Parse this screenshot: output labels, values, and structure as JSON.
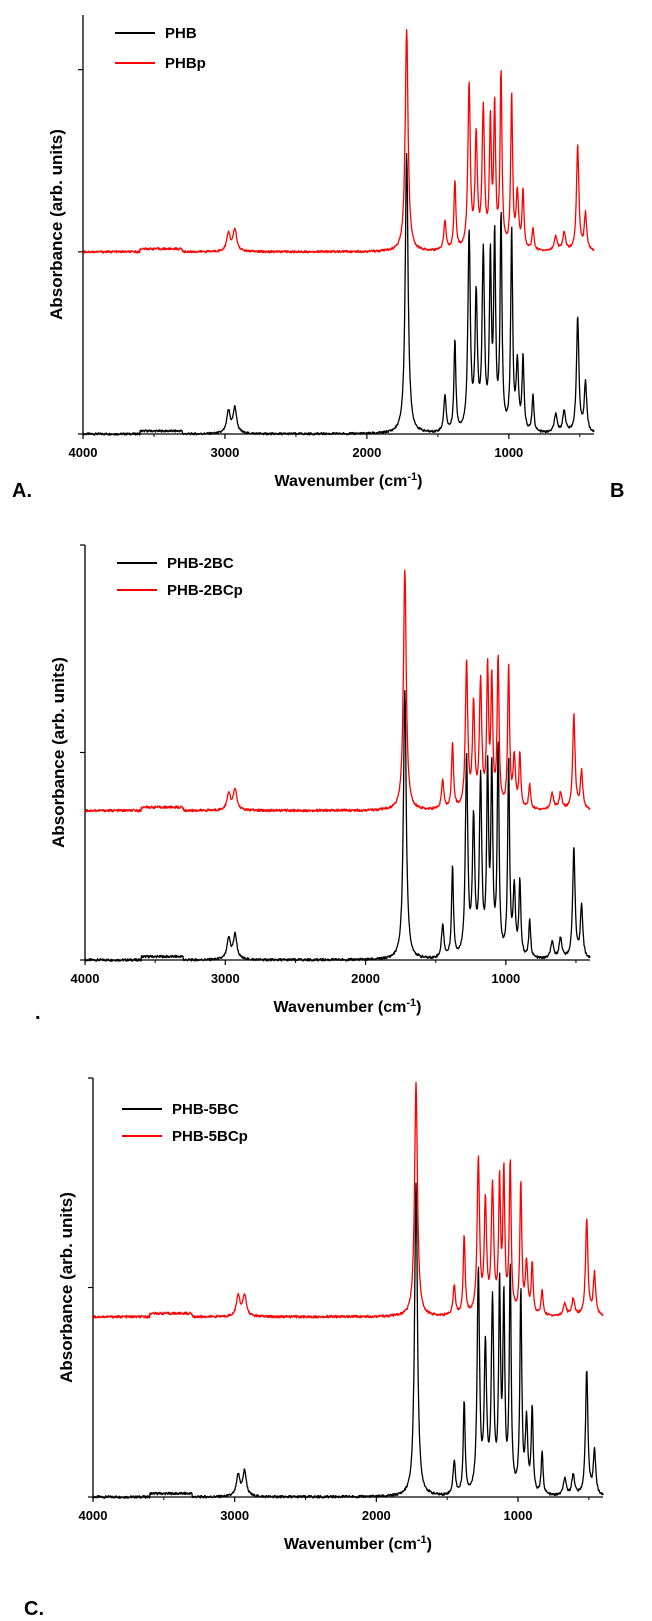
{
  "figure": {
    "panel_labels": {
      "a": "A.",
      "b": "B",
      "c": ".",
      "d": "C."
    }
  },
  "colors": {
    "series1": "#000000",
    "series2": "#ff0000",
    "axis": "#000000"
  },
  "chart_data": [
    {
      "type": "line",
      "xlabel": "Wavenumber (cm",
      "xlabel_sup": "-1",
      "xlabel_close": ")",
      "ylabel": "Absorbance (arb. units)",
      "xlim": [
        4000,
        400
      ],
      "x_reversed": true,
      "xticks": [
        4000,
        3000,
        2000,
        1000
      ],
      "ylim": [
        0,
        1.15
      ],
      "yticks": [
        0,
        0.5,
        1.0
      ],
      "show_ytick_labels": false,
      "grid": false,
      "legend_position": "top-left",
      "series": [
        {
          "name": "PHB",
          "color": "#000000",
          "offset": 0,
          "peaks": [
            [
              2975,
              0.06,
              15
            ],
            [
              2930,
              0.07,
              15
            ],
            [
              1720,
              0.77,
              12
            ],
            [
              1450,
              0.1,
              10
            ],
            [
              1380,
              0.25,
              8
            ],
            [
              1280,
              0.54,
              10
            ],
            [
              1230,
              0.36,
              10
            ],
            [
              1180,
              0.48,
              10
            ],
            [
              1130,
              0.46,
              8
            ],
            [
              1100,
              0.52,
              8
            ],
            [
              1055,
              0.58,
              8
            ],
            [
              980,
              0.55,
              8
            ],
            [
              940,
              0.18,
              10
            ],
            [
              900,
              0.2,
              8
            ],
            [
              830,
              0.1,
              8
            ],
            [
              670,
              0.05,
              12
            ],
            [
              610,
              0.06,
              12
            ],
            [
              515,
              0.32,
              10
            ],
            [
              460,
              0.14,
              10
            ]
          ]
        },
        {
          "name": "PHBp",
          "color": "#ff0000",
          "offset": 0.5,
          "peaks": [
            [
              2975,
              0.05,
              15
            ],
            [
              2930,
              0.06,
              15
            ],
            [
              1720,
              0.61,
              12
            ],
            [
              1450,
              0.08,
              10
            ],
            [
              1380,
              0.19,
              8
            ],
            [
              1280,
              0.45,
              10
            ],
            [
              1230,
              0.3,
              10
            ],
            [
              1180,
              0.38,
              10
            ],
            [
              1130,
              0.34,
              8
            ],
            [
              1100,
              0.38,
              8
            ],
            [
              1055,
              0.48,
              8
            ],
            [
              980,
              0.42,
              8
            ],
            [
              940,
              0.15,
              10
            ],
            [
              900,
              0.16,
              8
            ],
            [
              830,
              0.06,
              8
            ],
            [
              670,
              0.04,
              12
            ],
            [
              610,
              0.05,
              12
            ],
            [
              515,
              0.29,
              10
            ],
            [
              460,
              0.1,
              10
            ]
          ]
        }
      ]
    },
    {
      "type": "line",
      "xlabel": "Wavenumber (cm",
      "xlabel_sup": "-1",
      "xlabel_close": ")",
      "ylabel": "Absorbance (arb. units)",
      "xlim": [
        4000,
        400
      ],
      "x_reversed": true,
      "xticks": [
        4000,
        3000,
        2000,
        1000
      ],
      "ylim": [
        0,
        1.0
      ],
      "yticks": [
        0,
        0.5,
        1.0
      ],
      "show_ytick_labels": false,
      "grid": false,
      "legend_position": "top-left",
      "series": [
        {
          "name": "PHB-2BC",
          "color": "#000000",
          "offset": 0,
          "peaks": [
            [
              2975,
              0.05,
              15
            ],
            [
              2930,
              0.06,
              15
            ],
            [
              1720,
              0.65,
              12
            ],
            [
              1450,
              0.08,
              10
            ],
            [
              1380,
              0.22,
              8
            ],
            [
              1280,
              0.48,
              10
            ],
            [
              1230,
              0.32,
              10
            ],
            [
              1180,
              0.42,
              10
            ],
            [
              1130,
              0.44,
              8
            ],
            [
              1100,
              0.44,
              8
            ],
            [
              1055,
              0.5,
              8
            ],
            [
              980,
              0.47,
              8
            ],
            [
              940,
              0.16,
              10
            ],
            [
              900,
              0.18,
              8
            ],
            [
              830,
              0.09,
              8
            ],
            [
              670,
              0.04,
              12
            ],
            [
              610,
              0.05,
              12
            ],
            [
              515,
              0.27,
              10
            ],
            [
              460,
              0.13,
              10
            ]
          ]
        },
        {
          "name": "PHB-2BCp",
          "color": "#ff0000",
          "offset": 0.36,
          "peaks": [
            [
              2975,
              0.04,
              15
            ],
            [
              2930,
              0.05,
              15
            ],
            [
              1720,
              0.58,
              12
            ],
            [
              1450,
              0.07,
              10
            ],
            [
              1380,
              0.16,
              8
            ],
            [
              1280,
              0.35,
              10
            ],
            [
              1230,
              0.24,
              10
            ],
            [
              1180,
              0.3,
              10
            ],
            [
              1130,
              0.33,
              8
            ],
            [
              1100,
              0.3,
              8
            ],
            [
              1055,
              0.36,
              8
            ],
            [
              980,
              0.34,
              8
            ],
            [
              940,
              0.12,
              10
            ],
            [
              900,
              0.13,
              8
            ],
            [
              830,
              0.06,
              8
            ],
            [
              670,
              0.04,
              12
            ],
            [
              610,
              0.04,
              12
            ],
            [
              515,
              0.23,
              10
            ],
            [
              460,
              0.09,
              10
            ]
          ]
        }
      ]
    },
    {
      "type": "line",
      "xlabel": "Wavenumber (cm",
      "xlabel_sup": "-1",
      "xlabel_close": ")",
      "ylabel": "Absorbance (arb. units)",
      "xlim": [
        4000,
        400
      ],
      "x_reversed": true,
      "xticks": [
        4000,
        3000,
        2000,
        1000
      ],
      "ylim": [
        0,
        1.0
      ],
      "yticks": [
        0,
        0.5,
        1.0
      ],
      "show_ytick_labels": false,
      "grid": false,
      "legend_position": "top-left",
      "series": [
        {
          "name": "PHB-5BC",
          "color": "#000000",
          "offset": 0,
          "peaks": [
            [
              2975,
              0.05,
              15
            ],
            [
              2930,
              0.06,
              15
            ],
            [
              1720,
              0.75,
              12
            ],
            [
              1450,
              0.08,
              10
            ],
            [
              1380,
              0.22,
              8
            ],
            [
              1280,
              0.53,
              10
            ],
            [
              1230,
              0.34,
              10
            ],
            [
              1180,
              0.45,
              10
            ],
            [
              1130,
              0.48,
              8
            ],
            [
              1100,
              0.45,
              8
            ],
            [
              1055,
              0.53,
              8
            ],
            [
              980,
              0.48,
              8
            ],
            [
              940,
              0.17,
              10
            ],
            [
              900,
              0.2,
              8
            ],
            [
              830,
              0.1,
              8
            ],
            [
              670,
              0.04,
              12
            ],
            [
              610,
              0.05,
              12
            ],
            [
              515,
              0.3,
              10
            ],
            [
              460,
              0.11,
              10
            ]
          ]
        },
        {
          "name": "PHB-5BCp",
          "color": "#ff0000",
          "offset": 0.43,
          "peaks": [
            [
              2975,
              0.05,
              15
            ],
            [
              2930,
              0.05,
              15
            ],
            [
              1720,
              0.56,
              12
            ],
            [
              1450,
              0.07,
              10
            ],
            [
              1380,
              0.19,
              8
            ],
            [
              1280,
              0.37,
              10
            ],
            [
              1230,
              0.26,
              10
            ],
            [
              1180,
              0.3,
              10
            ],
            [
              1130,
              0.31,
              8
            ],
            [
              1100,
              0.33,
              8
            ],
            [
              1055,
              0.36,
              8
            ],
            [
              980,
              0.31,
              8
            ],
            [
              940,
              0.12,
              10
            ],
            [
              900,
              0.12,
              8
            ],
            [
              830,
              0.06,
              8
            ],
            [
              670,
              0.03,
              12
            ],
            [
              610,
              0.04,
              12
            ],
            [
              515,
              0.23,
              10
            ],
            [
              460,
              0.1,
              10
            ]
          ]
        }
      ]
    }
  ]
}
